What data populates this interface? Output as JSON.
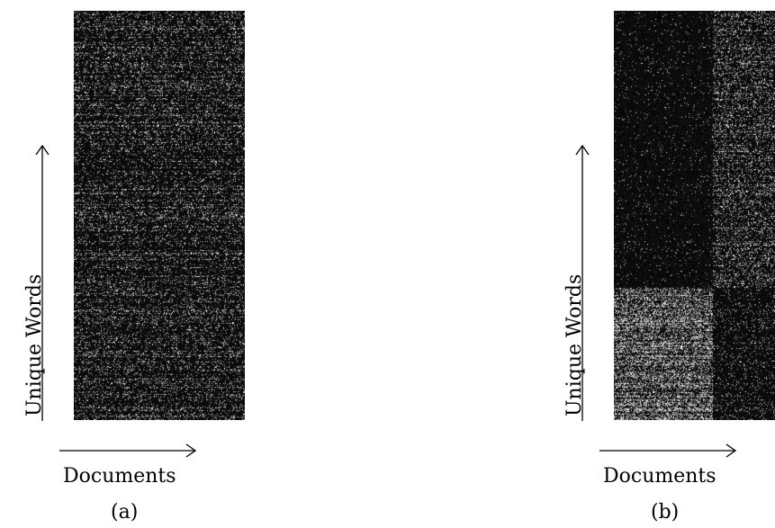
{
  "panels": [
    {
      "id": "a",
      "caption": "(a)",
      "x_label": "Documents",
      "y_label": "Unique Words",
      "pattern": "unclustered-noise"
    },
    {
      "id": "b",
      "caption": "(b)",
      "x_label": "Documents",
      "y_label": "Unique Words",
      "pattern": "block-clustered"
    }
  ],
  "colors": {
    "background": "#ffffff",
    "heatmap_base": "#000000",
    "heatmap_bright": "#ffffff",
    "text": "#000000"
  }
}
